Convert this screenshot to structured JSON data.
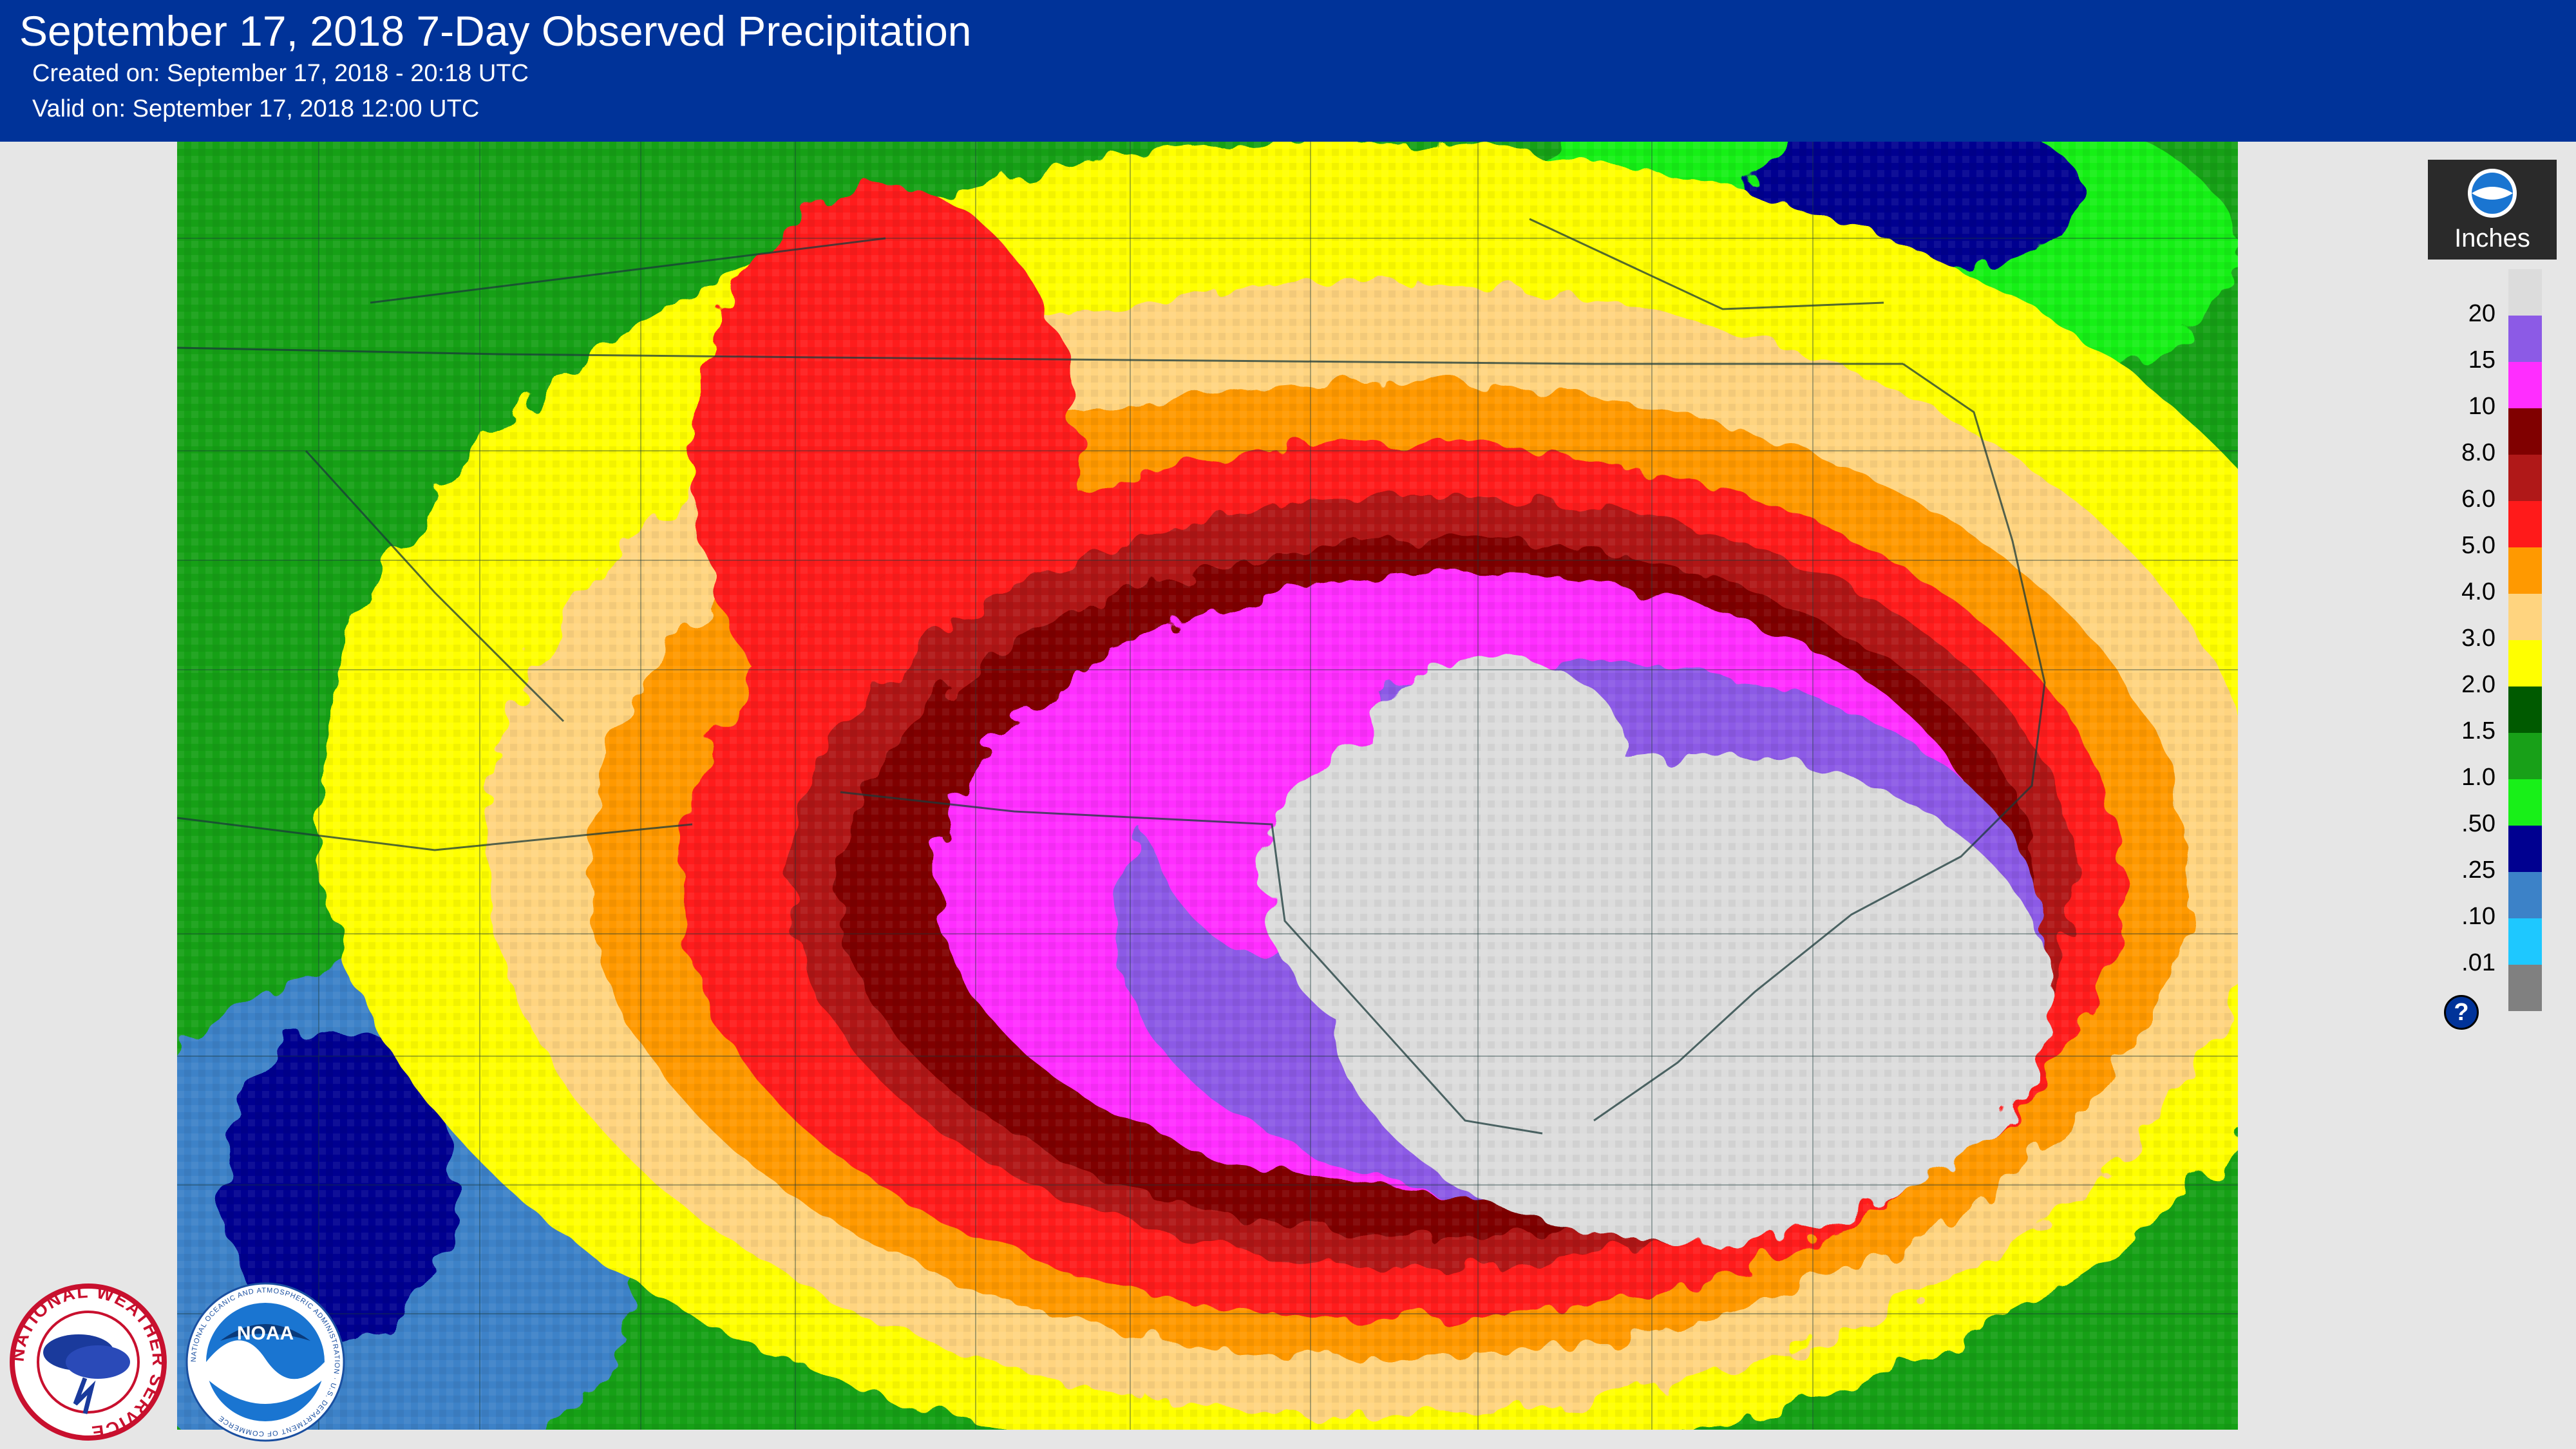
{
  "header": {
    "title": "September 17, 2018 7-Day Observed Precipitation",
    "created": "Created on: September 17, 2018 - 20:18 UTC",
    "valid": "Valid on: September 17, 2018 12:00 UTC"
  },
  "legend": {
    "units": "Inches",
    "items": [
      {
        "label": "20",
        "color": "#dcdcdc"
      },
      {
        "label": "15",
        "color": "#8c5ae6"
      },
      {
        "label": "10",
        "color": "#ff2dff"
      },
      {
        "label": "8.0",
        "color": "#800000"
      },
      {
        "label": "6.0",
        "color": "#b01818"
      },
      {
        "label": "5.0",
        "color": "#ff1a1a"
      },
      {
        "label": "4.0",
        "color": "#ff9900"
      },
      {
        "label": "3.0",
        "color": "#ffd47f"
      },
      {
        "label": "2.0",
        "color": "#ffff00"
      },
      {
        "label": "1.5",
        "color": "#005a00"
      },
      {
        "label": "1.0",
        "color": "#18a018"
      },
      {
        "label": ".50",
        "color": "#18f018"
      },
      {
        "label": ".25",
        "color": "#000090"
      },
      {
        "label": ".10",
        "color": "#3c82c8"
      },
      {
        "label": ".01",
        "color": "#1ec8ff"
      }
    ],
    "bottom_color": "#808080",
    "help_icon": "question-icon"
  },
  "logos": {
    "nws_text": "NATIONAL WEATHER SERVICE",
    "noaa_text": "NOAA",
    "noaa_ring_text": "NATIONAL OCEANIC AND ATMOSPHERIC ADMINISTRATION · U.S. DEPARTMENT OF COMMERCE"
  }
}
